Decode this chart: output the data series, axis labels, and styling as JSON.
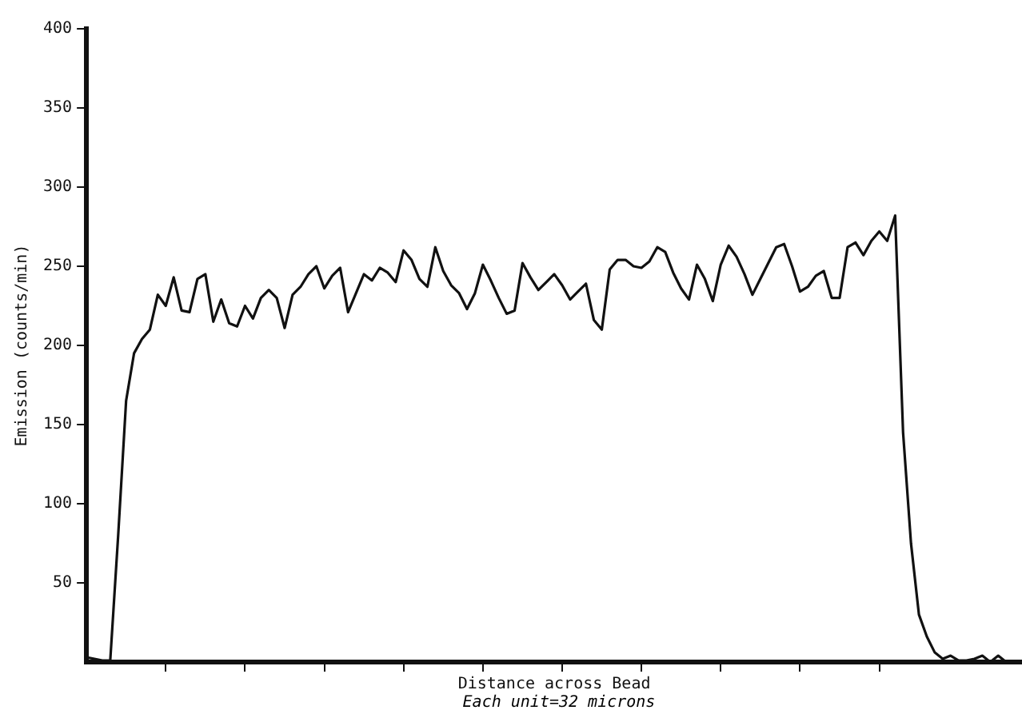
{
  "chart_data": {
    "type": "line",
    "xlabel": "Distance across Bead",
    "ylabel": "Emission (counts/min)",
    "annotations": [
      "Each unit=32 microns"
    ],
    "categories": [
      null,
      null,
      null,
      null,
      null,
      null,
      null,
      null,
      null,
      null,
      null,
      null,
      null,
      null,
      null,
      null,
      null,
      null,
      null,
      null,
      null,
      null,
      null,
      null,
      null,
      null,
      null,
      null,
      null,
      null,
      null,
      null,
      null,
      null,
      null,
      null,
      null,
      null,
      null,
      null,
      null,
      null,
      null,
      null,
      null,
      null,
      null,
      null,
      null,
      null,
      null,
      null,
      null,
      null,
      null,
      null,
      null,
      null,
      null,
      null,
      null,
      null,
      null,
      null,
      null,
      null,
      null,
      null,
      null,
      null,
      null,
      null,
      null,
      null,
      null,
      null,
      null,
      null,
      null,
      null,
      null,
      null,
      null,
      null,
      null,
      null,
      null,
      null,
      null,
      null,
      null,
      null,
      null,
      null,
      null,
      null,
      null,
      null,
      null,
      null,
      null,
      null,
      null,
      null,
      null,
      null,
      null,
      null,
      null,
      null,
      null,
      null,
      null,
      null,
      null,
      null,
      null,
      null,
      null
    ],
    "ylim": [
      0,
      400
    ],
    "yticks": [
      50,
      100,
      150,
      200,
      250,
      300,
      350,
      400
    ],
    "grid": false,
    "legend": false,
    "marker": "none",
    "line_style": "solid",
    "tick_labels": "y",
    "series": [
      {
        "color": "#111111",
        "values": [
          3,
          2,
          1,
          1,
          80,
          165,
          195,
          204,
          210,
          232,
          225,
          243,
          222,
          221,
          242,
          245,
          215,
          229,
          214,
          212,
          225,
          217,
          230,
          235,
          230,
          211,
          232,
          237,
          245,
          250,
          236,
          244,
          249,
          221,
          233,
          245,
          241,
          249,
          246,
          240,
          260,
          254,
          242,
          237,
          262,
          247,
          238,
          233,
          223,
          233,
          251,
          241,
          230,
          220,
          222,
          252,
          243,
          235,
          240,
          245,
          238,
          229,
          234,
          239,
          216,
          210,
          248,
          254,
          254,
          250,
          249,
          253,
          262,
          259,
          246,
          236,
          229,
          251,
          242,
          228,
          251,
          263,
          256,
          245,
          232,
          242,
          252,
          262,
          264,
          250,
          234,
          237,
          244,
          247,
          230,
          230,
          262,
          265,
          257,
          266,
          272,
          266,
          282,
          145,
          75,
          30,
          16,
          6,
          2,
          4,
          1,
          1,
          2,
          4,
          0,
          4,
          0,
          0,
          0
        ]
      }
    ]
  }
}
